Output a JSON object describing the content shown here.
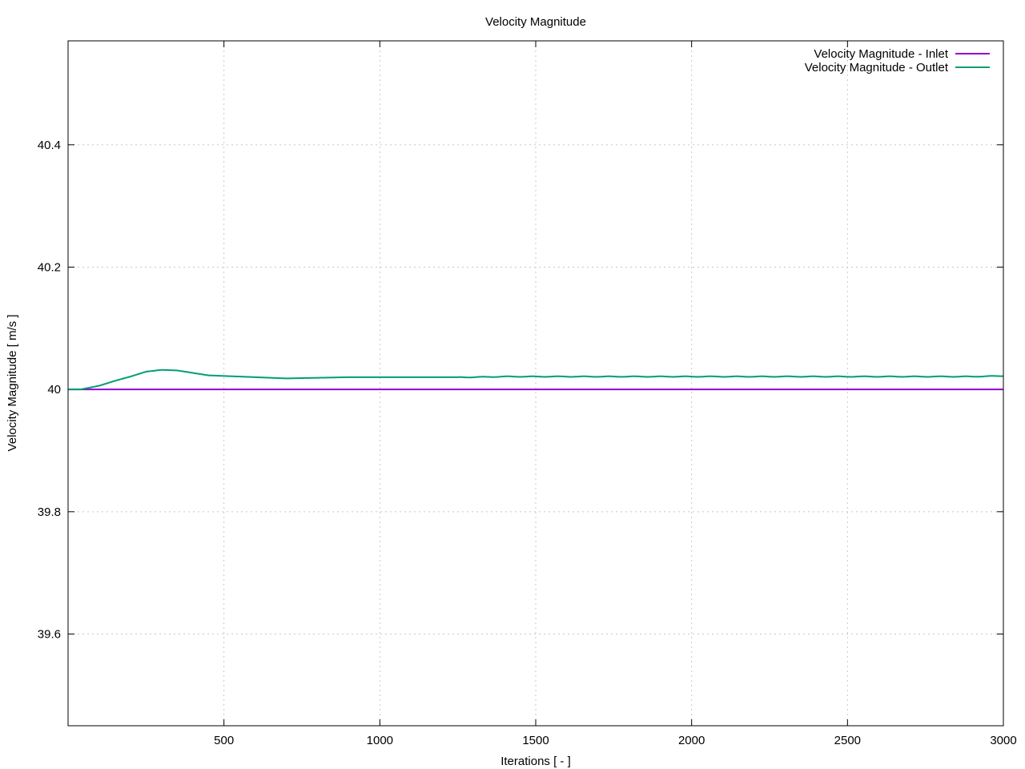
{
  "chart_data": {
    "type": "line",
    "title": "Velocity Magnitude",
    "xlabel": "Iterations [ - ]",
    "ylabel": "Velocity Magnitude [ m/s ]",
    "xlim": [
      0,
      3000
    ],
    "ylim": [
      39.45,
      40.57
    ],
    "xticks": [
      500,
      1000,
      1500,
      2000,
      2500,
      3000
    ],
    "yticks": [
      39.6,
      39.8,
      40,
      40.2,
      40.4
    ],
    "xtick_labels": [
      "500",
      "1000",
      "1500",
      "2000",
      "2500",
      "3000"
    ],
    "ytick_labels": [
      "39.6",
      "39.8",
      "40",
      "40.2",
      "40.4"
    ],
    "grid": true,
    "legend_position": "top-right",
    "series": [
      {
        "name": "Velocity Magnitude - Inlet",
        "color": "#9400d3",
        "x": [
          0,
          3000
        ],
        "y": [
          40.0,
          40.0
        ]
      },
      {
        "name": "Velocity Magnitude - Outlet",
        "color": "#009e73",
        "x": [
          0,
          40,
          100,
          150,
          200,
          250,
          300,
          350,
          400,
          450,
          500,
          600,
          700,
          800,
          900,
          1000,
          1100,
          1200,
          1300,
          1400,
          1500,
          1600,
          1700,
          1800,
          1900,
          2000,
          2100,
          2200,
          2300,
          2400,
          2500,
          2600,
          2700,
          2800,
          2900,
          3000
        ],
        "y": [
          40.0,
          40.0,
          40.006,
          40.014,
          40.021,
          40.029,
          40.032,
          40.031,
          40.027,
          40.023,
          40.022,
          40.02,
          40.018,
          40.019,
          40.02,
          40.02,
          40.02,
          40.02,
          40.02,
          40.021,
          40.021,
          40.021,
          40.021,
          40.021,
          40.021,
          40.021,
          40.021,
          40.021,
          40.021,
          40.021,
          40.021,
          40.021,
          40.021,
          40.021,
          40.021,
          40.022
        ]
      }
    ]
  }
}
